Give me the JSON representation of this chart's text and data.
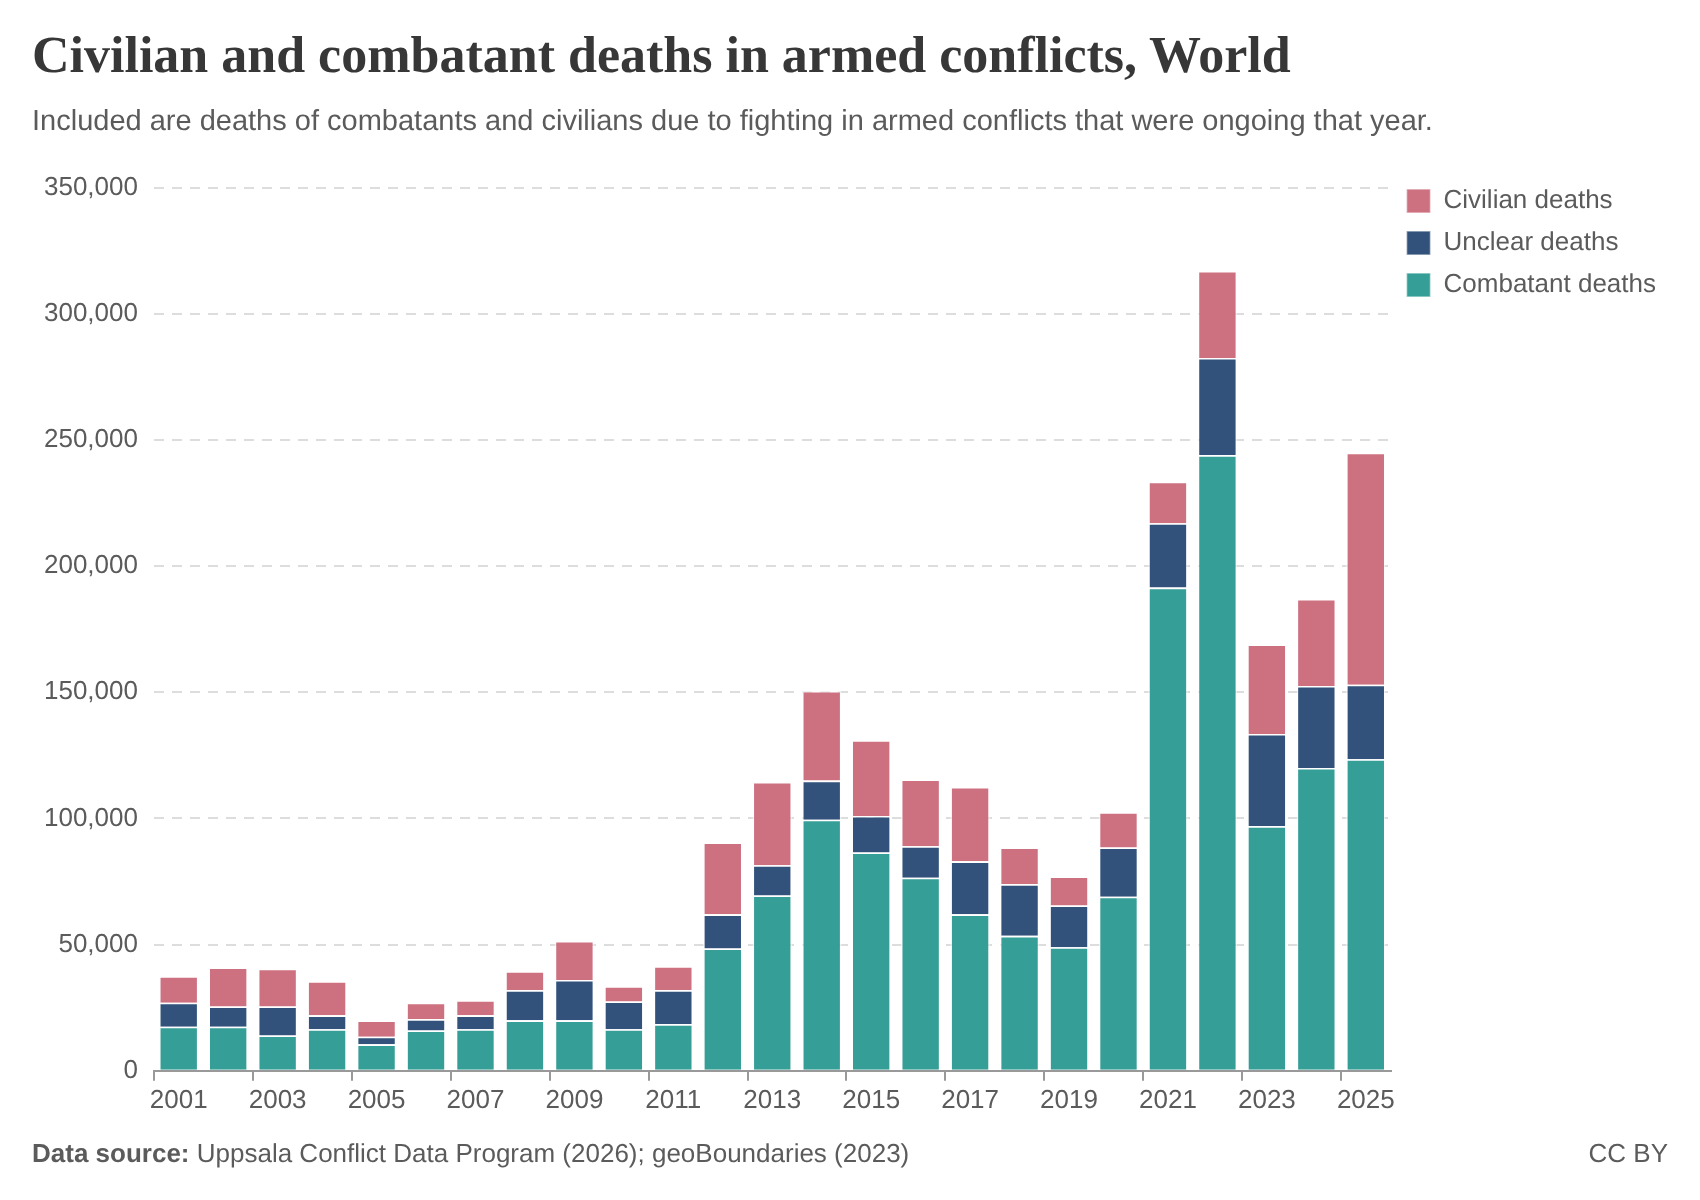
{
  "chart_data": {
    "type": "bar",
    "title": "Civilian and combatant deaths in armed conflicts, World",
    "subtitle": "Included are deaths of combatants and civilians due to fighting in armed conflicts that were ongoing that year.",
    "annotations": [
      "Data source: Uppsala Conflict Data Program (2026); geoBoundaries (2023)",
      "CC BY"
    ],
    "categories": [
      "2001",
      null,
      "2003",
      null,
      "2005",
      null,
      "2007",
      null,
      "2009",
      null,
      "2011",
      null,
      "2013",
      null,
      "2015",
      null,
      "2017",
      null,
      "2019",
      null,
      "2021",
      null,
      "2023",
      null,
      "2025"
    ],
    "series": [
      {
        "name": "Combatant deaths",
        "color": "#359e97",
        "values": [
          17500,
          17500,
          14000,
          16500,
          10500,
          16000,
          16500,
          20000,
          20000,
          16500,
          18500,
          48500,
          69500,
          99500,
          86500,
          76500,
          62000,
          53500,
          49000,
          69000,
          191500,
          244000,
          97000,
          120000,
          123500
        ]
      },
      {
        "name": "Unclear deaths",
        "color": "#32527b",
        "values": [
          9500,
          8000,
          11500,
          5500,
          3000,
          4500,
          5500,
          12000,
          16000,
          11000,
          13500,
          13500,
          12000,
          15500,
          14500,
          12500,
          21000,
          20500,
          16500,
          19500,
          25500,
          38500,
          36500,
          32500,
          29500
        ]
      },
      {
        "name": "Civilian deaths",
        "color": "#cd7080",
        "values": [
          10500,
          15500,
          15000,
          13500,
          6500,
          6500,
          6000,
          7500,
          15500,
          6000,
          9500,
          28500,
          33000,
          35500,
          30000,
          26500,
          29500,
          14500,
          11500,
          14000,
          16500,
          34500,
          35500,
          34500,
          92000
        ]
      }
    ],
    "stacked": true,
    "ylim": [
      0,
      350000
    ],
    "yticks": [
      0,
      {
        "value": 50000,
        "label": "50,000"
      },
      {
        "value": 100000,
        "label": "100,000"
      },
      {
        "value": 150000,
        "label": "150,000"
      },
      {
        "value": 200000,
        "label": "200,000"
      },
      {
        "value": 250000,
        "label": "250,000"
      },
      {
        "value": 300000,
        "label": "300,000"
      },
      {
        "value": 350000,
        "label": "350,000"
      }
    ],
    "grid": "y",
    "legend": "top right"
  }
}
